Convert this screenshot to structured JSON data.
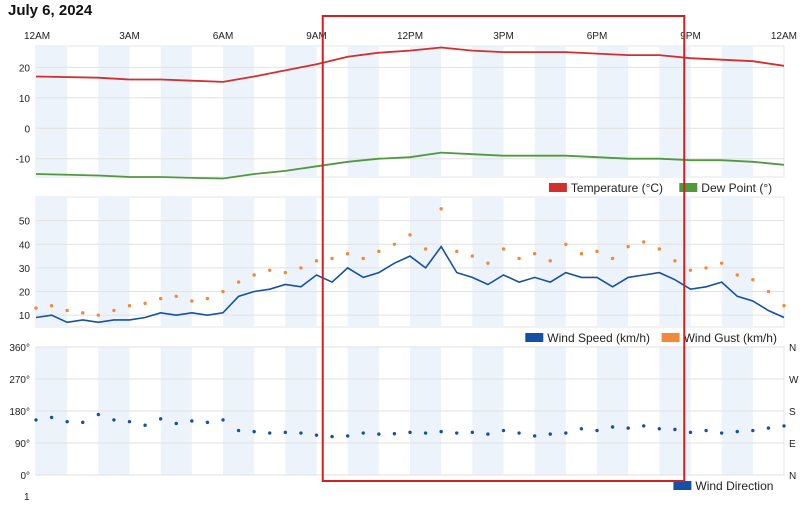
{
  "page": {
    "date_title": "July 6, 2024"
  },
  "x_axis": {
    "ticks": [
      "12AM",
      "3AM",
      "6AM",
      "9AM",
      "12PM",
      "3PM",
      "6PM",
      "9PM",
      "12AM"
    ]
  },
  "highlight": {
    "start_hour": 9.2,
    "end_hour": 20.8,
    "color": "#d02020"
  },
  "colors": {
    "temperature": "#d32f2f",
    "dew_point": "#4f9a3f",
    "wind_speed": "#1451a6",
    "wind_gust": "#f2893a",
    "wind_direction": "#1451a6",
    "shading": "#edf3fa"
  },
  "chart_data": [
    {
      "type": "line",
      "xlabel": "",
      "ylabel": "",
      "ylim": [
        -16,
        27
      ],
      "y_ticks": [
        -10,
        0,
        10,
        20
      ],
      "legend_position": "bottom-right",
      "series": [
        {
          "name": "Temperature (°C)",
          "x_hours": [
            0,
            2,
            3,
            4,
            5,
            6,
            7,
            8,
            9,
            10,
            11,
            12,
            13,
            14,
            15,
            16,
            17,
            18,
            19,
            20,
            21,
            22,
            23,
            24
          ],
          "values": [
            17,
            16.6,
            16,
            16,
            15.6,
            15.2,
            17,
            19,
            21,
            23.5,
            24.8,
            25.5,
            26.5,
            25.5,
            25,
            25,
            25,
            24.5,
            24,
            24,
            23,
            22.5,
            22,
            20.5
          ]
        },
        {
          "name": "Dew Point (°)",
          "x_hours": [
            0,
            2,
            3,
            4,
            5,
            6,
            7,
            8,
            9,
            10,
            11,
            12,
            13,
            14,
            15,
            16,
            17,
            18,
            19,
            20,
            21,
            22,
            23,
            24
          ],
          "values": [
            -15,
            -15.5,
            -16,
            -16,
            -16.3,
            -16.5,
            -15,
            -14,
            -12.5,
            -11,
            -10,
            -9.5,
            -8,
            -8.5,
            -9,
            -9,
            -9,
            -9.5,
            -10,
            -10,
            -10.5,
            -10.5,
            -11,
            -12
          ]
        }
      ]
    },
    {
      "type": "line",
      "xlabel": "",
      "ylabel": "",
      "ylim": [
        5,
        60
      ],
      "y_ticks": [
        10,
        20,
        30,
        40,
        50
      ],
      "legend_position": "bottom-right",
      "series": [
        {
          "name": "Wind Speed (km/h)",
          "x_hours": [
            0,
            0.5,
            1,
            1.5,
            2,
            2.5,
            3,
            3.5,
            4,
            4.5,
            5,
            5.5,
            6,
            6.5,
            7,
            7.5,
            8,
            8.5,
            9,
            9.5,
            10,
            10.5,
            11,
            11.5,
            12,
            12.5,
            13,
            13.5,
            14,
            14.5,
            15,
            15.5,
            16,
            16.5,
            17,
            17.5,
            18,
            18.5,
            19,
            19.5,
            20,
            20.5,
            21,
            21.5,
            22,
            22.5,
            23,
            23.5,
            24
          ],
          "values": [
            9,
            10,
            7,
            8,
            7,
            8,
            8,
            9,
            11,
            10,
            11,
            10,
            11,
            18,
            20,
            21,
            23,
            22,
            27,
            24,
            30,
            26,
            28,
            32,
            35,
            30,
            39,
            28,
            26,
            23,
            27,
            24,
            26,
            24,
            28,
            26,
            26,
            22,
            26,
            27,
            28,
            25,
            21,
            22,
            24,
            18,
            16,
            12,
            9
          ]
        },
        {
          "name": "Wind Gust (km/h)",
          "x_hours": [
            0,
            0.5,
            1,
            1.5,
            2,
            2.5,
            3,
            3.5,
            4,
            4.5,
            5,
            5.5,
            6,
            6.5,
            7,
            7.5,
            8,
            8.5,
            9,
            9.5,
            10,
            10.5,
            11,
            11.5,
            12,
            12.5,
            13,
            13.5,
            14,
            14.5,
            15,
            15.5,
            16,
            16.5,
            17,
            17.5,
            18,
            18.5,
            19,
            19.5,
            20,
            20.5,
            21,
            21.5,
            22,
            22.5,
            23,
            23.5,
            24
          ],
          "values": [
            13,
            14,
            12,
            11,
            10,
            12,
            14,
            15,
            17,
            18,
            16,
            17,
            20,
            24,
            27,
            29,
            28,
            30,
            33,
            34,
            36,
            34,
            37,
            40,
            44,
            38,
            55,
            37,
            35,
            32,
            38,
            34,
            36,
            33,
            40,
            36,
            37,
            34,
            39,
            41,
            38,
            33,
            29,
            30,
            32,
            27,
            25,
            20,
            14
          ]
        }
      ]
    },
    {
      "type": "scatter",
      "xlabel": "",
      "ylabel": "",
      "ylim": [
        0,
        360
      ],
      "y_ticks": [
        "0°",
        "90°",
        "180°",
        "270°",
        "360°"
      ],
      "y_ticks_right": [
        "N",
        "E",
        "S",
        "W",
        "N"
      ],
      "legend_position": "bottom-right",
      "series": [
        {
          "name": "Wind Direction",
          "x_hours": [
            0,
            0.5,
            1,
            1.5,
            2,
            2.5,
            3,
            3.5,
            4,
            4.5,
            5,
            5.5,
            6,
            6.5,
            7,
            7.5,
            8,
            8.5,
            9,
            9.5,
            10,
            10.5,
            11,
            11.5,
            12,
            12.5,
            13,
            13.5,
            14,
            14.5,
            15,
            15.5,
            16,
            16.5,
            17,
            17.5,
            18,
            18.5,
            19,
            19.5,
            20,
            20.5,
            21,
            21.5,
            22,
            22.5,
            23,
            23.5,
            24
          ],
          "values": [
            155,
            162,
            150,
            148,
            170,
            155,
            150,
            140,
            158,
            145,
            152,
            148,
            155,
            125,
            122,
            118,
            120,
            118,
            112,
            108,
            110,
            118,
            115,
            116,
            120,
            118,
            122,
            118,
            120,
            115,
            125,
            118,
            110,
            115,
            118,
            130,
            125,
            135,
            132,
            138,
            130,
            128,
            120,
            125,
            118,
            122,
            125,
            132,
            138
          ]
        }
      ]
    }
  ],
  "bottom_partial_label": "1"
}
